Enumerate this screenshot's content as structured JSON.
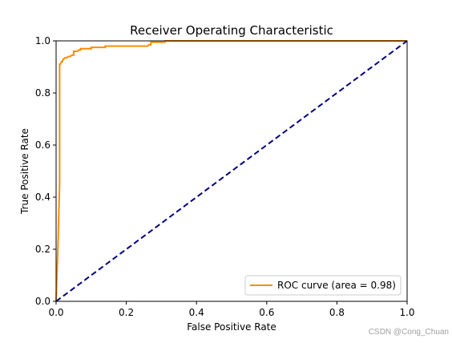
{
  "chart_data": {
    "type": "line",
    "title": "Receiver Operating Characteristic",
    "xlabel": "False Positive Rate",
    "ylabel": "True Positive Rate",
    "xlim": [
      0.0,
      1.0
    ],
    "ylim": [
      0.0,
      1.0
    ],
    "xticks": [
      0.0,
      0.2,
      0.4,
      0.6,
      0.8,
      1.0
    ],
    "yticks": [
      0.0,
      0.2,
      0.4,
      0.6,
      0.8,
      1.0
    ],
    "xtick_labels": [
      "0.0",
      "0.2",
      "0.4",
      "0.6",
      "0.8",
      "1.0"
    ],
    "ytick_labels": [
      "0.0",
      "0.2",
      "0.4",
      "0.6",
      "0.8",
      "1.0"
    ],
    "grid": false,
    "legend_position": "lower right",
    "series": [
      {
        "name": "ROC curve (area = 0.98)",
        "color": "#ff8c00",
        "style": "solid",
        "x": [
          0.0,
          0.005,
          0.01,
          0.01,
          0.012,
          0.015,
          0.018,
          0.02,
          0.022,
          0.025,
          0.03,
          0.035,
          0.04,
          0.045,
          0.05,
          0.05,
          0.06,
          0.065,
          0.07,
          0.07,
          0.09,
          0.1,
          0.1,
          0.12,
          0.14,
          0.14,
          0.2,
          0.26,
          0.265,
          0.27,
          0.27,
          0.3,
          0.31,
          0.31,
          1.0
        ],
        "y": [
          0.0,
          0.2,
          0.45,
          0.91,
          0.91,
          0.92,
          0.92,
          0.93,
          0.93,
          0.935,
          0.935,
          0.94,
          0.94,
          0.945,
          0.945,
          0.96,
          0.96,
          0.965,
          0.965,
          0.97,
          0.97,
          0.97,
          0.975,
          0.975,
          0.975,
          0.98,
          0.98,
          0.98,
          0.985,
          0.985,
          0.995,
          0.995,
          0.995,
          1.0,
          1.0
        ]
      },
      {
        "color": "#000080",
        "style": "dashed",
        "x": [
          0.0,
          1.0
        ],
        "y": [
          0.0,
          1.0
        ]
      }
    ]
  },
  "watermark": "CSDN @Cong_Chuan"
}
